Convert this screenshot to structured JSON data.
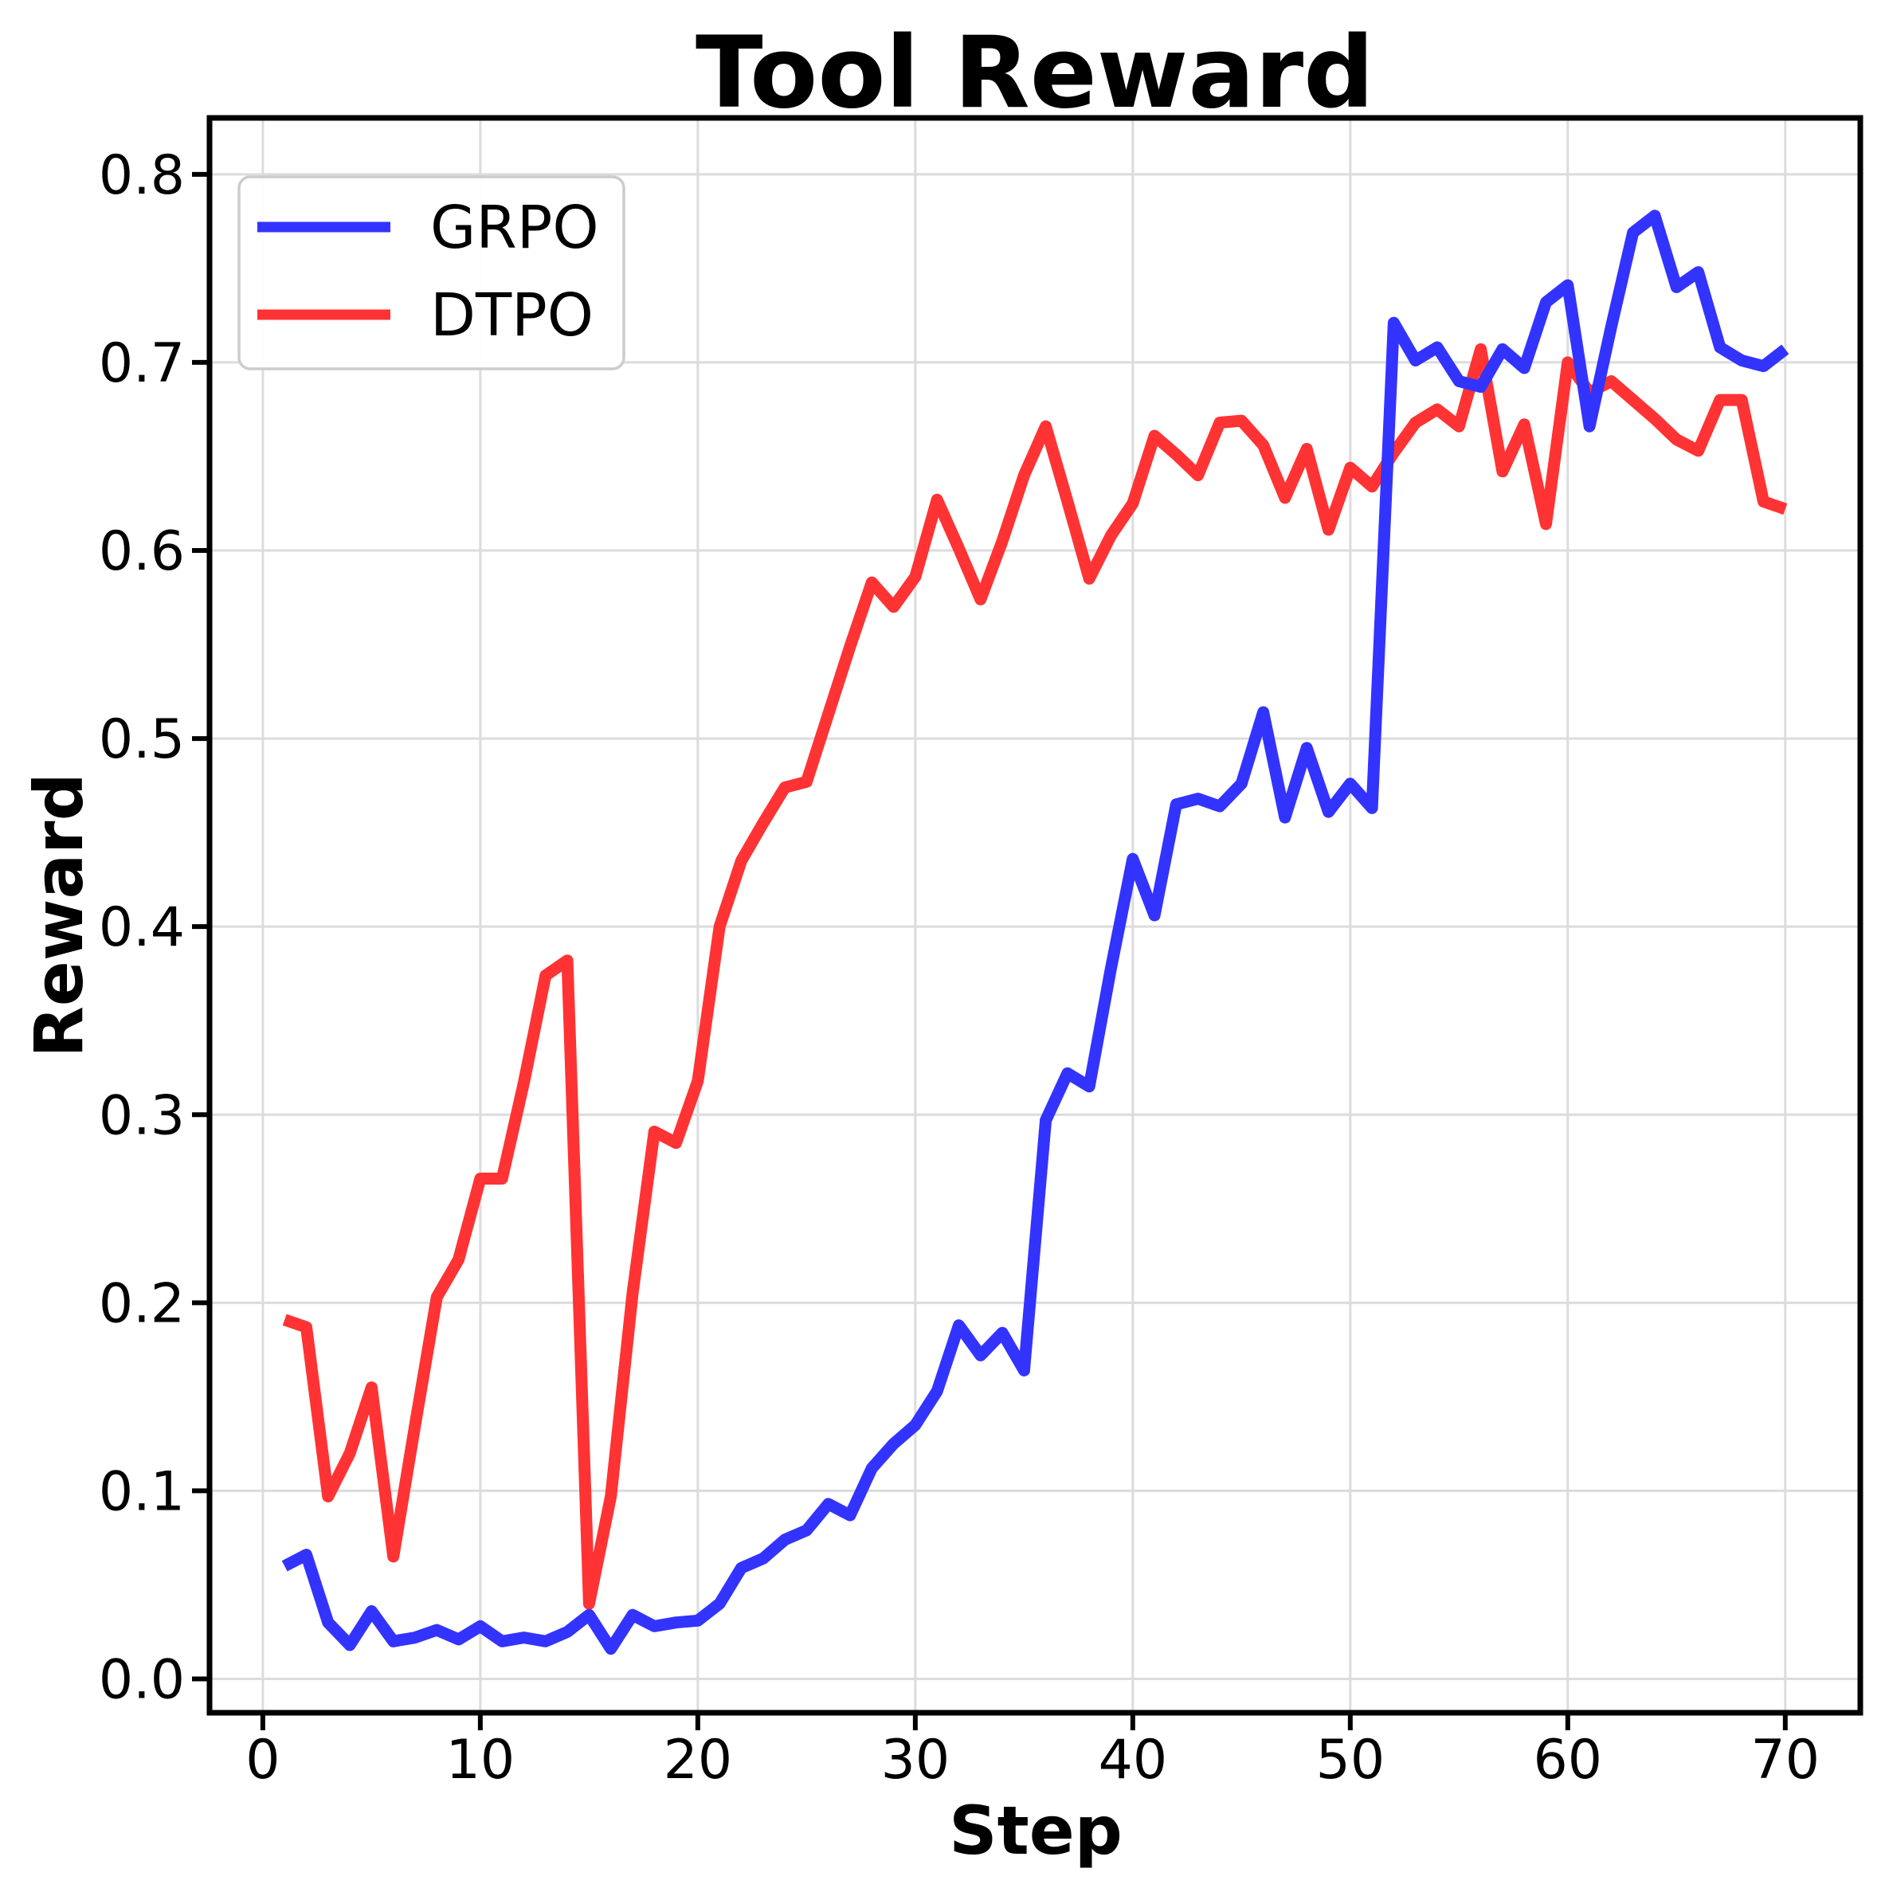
{
  "title": "Tool Reward",
  "chart_data": {
    "type": "line",
    "title": "Tool Reward",
    "xlabel": "Step",
    "ylabel": "Reward",
    "grid": true,
    "grid_color": "#dcdcdc",
    "background": "#ffffff",
    "legend_position": "upper left",
    "xlim": [
      -2.45,
      73.45
    ],
    "ylim": [
      -0.018,
      0.83
    ],
    "x_ticks": [
      0,
      10,
      20,
      30,
      40,
      50,
      60,
      70
    ],
    "y_ticks": [
      "0.0",
      "0.1",
      "0.2",
      "0.3",
      "0.4",
      "0.5",
      "0.6",
      "0.7",
      "0.8"
    ],
    "x": [
      1,
      2,
      3,
      4,
      5,
      6,
      7,
      8,
      9,
      10,
      11,
      12,
      13,
      14,
      15,
      16,
      17,
      18,
      19,
      20,
      21,
      22,
      23,
      24,
      25,
      26,
      27,
      28,
      29,
      30,
      31,
      32,
      33,
      34,
      35,
      36,
      37,
      38,
      39,
      40,
      41,
      42,
      43,
      44,
      45,
      46,
      47,
      48,
      49,
      50,
      51,
      52,
      53,
      54,
      55,
      56,
      57,
      58,
      59,
      60,
      61,
      62,
      63,
      64,
      65,
      66,
      67,
      68,
      69,
      70
    ],
    "series": [
      {
        "name": "DTPO",
        "color": "#ff3333",
        "values": [
          0.191,
          0.187,
          0.097,
          0.12,
          0.155,
          0.065,
          0.135,
          0.203,
          0.223,
          0.266,
          0.266,
          0.317,
          0.374,
          0.382,
          0.04,
          0.097,
          0.205,
          0.291,
          0.285,
          0.318,
          0.4,
          0.435,
          0.455,
          0.474,
          0.477,
          0.513,
          0.549,
          0.583,
          0.57,
          0.586,
          0.627,
          0.601,
          0.574,
          0.605,
          0.64,
          0.666,
          0.626,
          0.585,
          0.608,
          0.625,
          0.661,
          0.651,
          0.64,
          0.668,
          0.669,
          0.656,
          0.628,
          0.654,
          0.611,
          0.644,
          0.634,
          0.652,
          0.668,
          0.675,
          0.666,
          0.707,
          0.642,
          0.667,
          0.614,
          0.7,
          0.684,
          0.69,
          0.68,
          0.67,
          0.659,
          0.653,
          0.68,
          0.68,
          0.626,
          0.622
        ]
      },
      {
        "name": "GRPO",
        "color": "#3333ff",
        "values": [
          0.06,
          0.066,
          0.03,
          0.018,
          0.036,
          0.02,
          0.022,
          0.026,
          0.021,
          0.028,
          0.02,
          0.022,
          0.02,
          0.025,
          0.034,
          0.016,
          0.034,
          0.028,
          0.03,
          0.031,
          0.04,
          0.059,
          0.064,
          0.074,
          0.079,
          0.093,
          0.087,
          0.112,
          0.125,
          0.135,
          0.153,
          0.188,
          0.172,
          0.184,
          0.164,
          0.297,
          0.322,
          0.315,
          0.378,
          0.436,
          0.406,
          0.465,
          0.468,
          0.464,
          0.476,
          0.514,
          0.458,
          0.495,
          0.461,
          0.476,
          0.463,
          0.721,
          0.701,
          0.708,
          0.69,
          0.687,
          0.707,
          0.697,
          0.732,
          0.741,
          0.666,
          0.719,
          0.769,
          0.778,
          0.74,
          0.748,
          0.708,
          0.701,
          0.698,
          0.707
        ]
      }
    ],
    "legend": {
      "items": [
        {
          "label": "GRPO",
          "color": "#3333ff"
        },
        {
          "label": "DTPO",
          "color": "#ff3333"
        }
      ]
    }
  }
}
